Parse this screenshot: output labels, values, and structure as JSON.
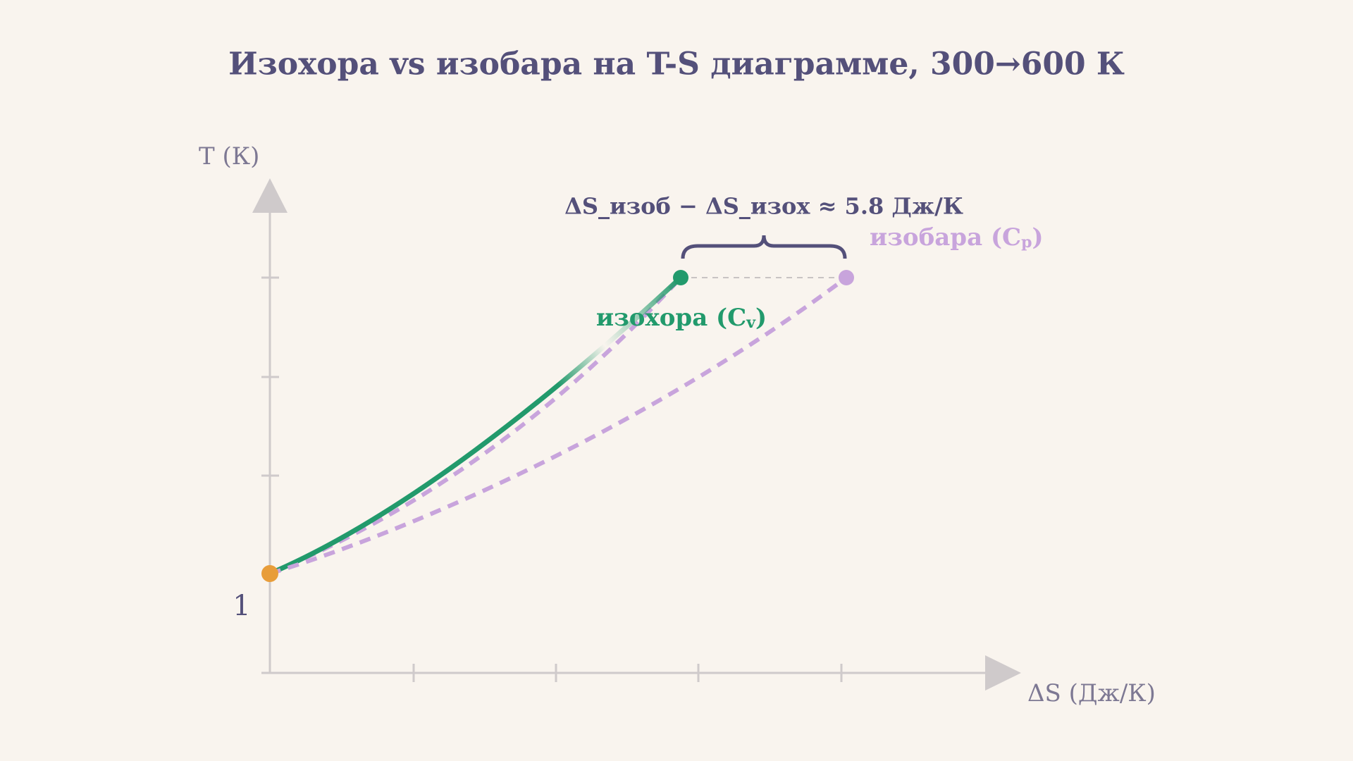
{
  "header": {
    "title": "Изохора vs изобара на T-S диаграмме, 300→600 К"
  },
  "axes": {
    "y_label": "T (К)",
    "x_label": "ΔS (Дж/К)",
    "origin_label": "1"
  },
  "annotation": {
    "difference": "ΔS_изоб − ΔS_изох  ≈  5.8 Дж/К"
  },
  "curves": {
    "isochoric": {
      "label": "изохора (C",
      "sub": "v",
      "end": ")"
    },
    "isobaric": {
      "label": "изобара (C",
      "sub": "p",
      "end": ")"
    }
  }
}
